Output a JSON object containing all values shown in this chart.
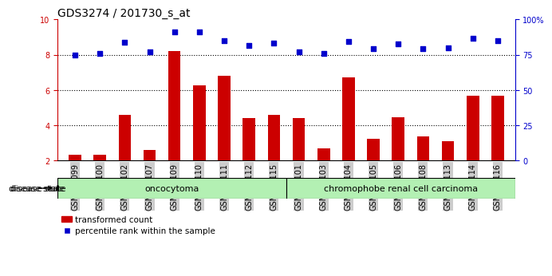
{
  "title": "GDS3274 / 201730_s_at",
  "samples": [
    "GSM305099",
    "GSM305100",
    "GSM305102",
    "GSM305107",
    "GSM305109",
    "GSM305110",
    "GSM305111",
    "GSM305112",
    "GSM305115",
    "GSM305101",
    "GSM305103",
    "GSM305104",
    "GSM305105",
    "GSM305106",
    "GSM305108",
    "GSM305113",
    "GSM305114",
    "GSM305116"
  ],
  "red_values": [
    2.35,
    2.35,
    4.6,
    2.6,
    8.2,
    6.25,
    6.8,
    4.4,
    4.6,
    4.4,
    2.7,
    6.7,
    3.25,
    4.45,
    3.4,
    3.1,
    5.7,
    5.7
  ],
  "blue_values": [
    8.0,
    8.1,
    8.7,
    8.15,
    9.3,
    9.3,
    8.8,
    8.55,
    8.65,
    8.15,
    8.1,
    8.75,
    8.35,
    8.6,
    8.35,
    8.4,
    8.95,
    8.8
  ],
  "oncocytoma_count": 9,
  "chromophobe_count": 9,
  "ylim_left": [
    2,
    10
  ],
  "ylim_right": [
    0,
    100
  ],
  "yticks_left": [
    2,
    4,
    6,
    8,
    10
  ],
  "yticks_right": [
    0,
    25,
    50,
    75,
    100
  ],
  "red_color": "#cc0000",
  "blue_color": "#0000cc",
  "disease_bg_oc": "#b3f0b3",
  "disease_bg_ch": "#b3f0b3",
  "bar_base": 2.0,
  "background_color": "#ffffff",
  "tick_label_bg": "#cccccc",
  "legend_red_label": "transformed count",
  "legend_blue_label": "percentile rank within the sample",
  "disease_state_label": "disease state",
  "oncocytoma_label": "oncocytoma",
  "chromophobe_label": "chromophobe renal cell carcinoma",
  "title_fontsize": 10,
  "tick_fontsize": 7,
  "legend_fontsize": 7.5
}
